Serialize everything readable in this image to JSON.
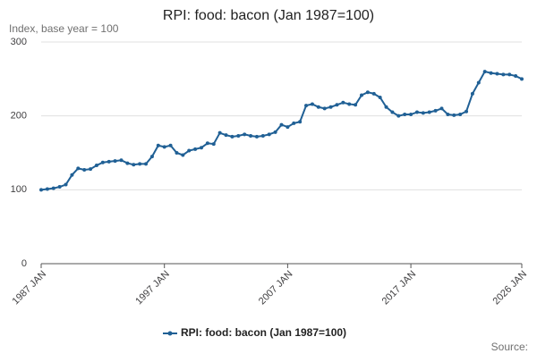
{
  "chart_data": {
    "type": "line",
    "title": "RPI: food: bacon (Jan 1987=100)",
    "y_label": "Index, base year = 100",
    "source": "Source:",
    "x": [
      "1987 JAN",
      "1987 JUL",
      "1988 JAN",
      "1988 JUL",
      "1989 JAN",
      "1989 JUL",
      "1990 JAN",
      "1990 JUL",
      "1991 JAN",
      "1991 JUL",
      "1992 JAN",
      "1992 JUL",
      "1993 JAN",
      "1993 JUL",
      "1994 JAN",
      "1994 JUL",
      "1995 JAN",
      "1995 JUL",
      "1996 JAN",
      "1996 JUL",
      "1997 JAN",
      "1997 JUL",
      "1998 JAN",
      "1998 JUL",
      "1999 JAN",
      "1999 JUL",
      "2000 JAN",
      "2000 JUL",
      "2001 JAN",
      "2001 JUL",
      "2002 JAN",
      "2002 JUL",
      "2003 JAN",
      "2003 JUL",
      "2004 JAN",
      "2004 JUL",
      "2005 JAN",
      "2005 JUL",
      "2006 JAN",
      "2006 JUL",
      "2007 JAN",
      "2007 JUL",
      "2008 JAN",
      "2008 JUL",
      "2009 JAN",
      "2009 JUL",
      "2010 JAN",
      "2010 JUL",
      "2011 JAN",
      "2011 JUL",
      "2012 JAN",
      "2012 JUL",
      "2013 JAN",
      "2013 JUL",
      "2014 JAN",
      "2014 JUL",
      "2015 JAN",
      "2015 JUL",
      "2016 JAN",
      "2016 JUL",
      "2017 JAN",
      "2017 JUL",
      "2018 JAN",
      "2018 JUL",
      "2019 JAN",
      "2019 JUL",
      "2020 JAN",
      "2020 JUL",
      "2021 JAN",
      "2021 JUL",
      "2022 JAN",
      "2022 JUL",
      "2023 JAN",
      "2023 JUL",
      "2024 JAN",
      "2024 JUL",
      "2025 JAN",
      "2025 JUL",
      "2026 JAN"
    ],
    "series": [
      {
        "name": "RPI: food: bacon (Jan 1987=100)",
        "color": "#206095",
        "values": [
          100,
          101,
          102,
          104,
          107,
          120,
          129,
          127,
          128,
          133,
          137,
          138,
          139,
          140,
          136,
          134,
          135,
          135,
          145,
          160,
          158,
          160,
          150,
          147,
          153,
          155,
          157,
          163,
          162,
          177,
          174,
          172,
          173,
          175,
          173,
          172,
          173,
          175,
          178,
          188,
          185,
          190,
          192,
          214,
          216,
          212,
          210,
          212,
          215,
          218,
          216,
          215,
          228,
          232,
          230,
          225,
          212,
          205,
          200,
          202,
          202,
          205,
          204,
          205,
          207,
          210,
          202,
          201,
          202,
          206,
          230,
          245,
          260,
          258,
          257,
          256,
          256,
          254,
          250
        ]
      }
    ],
    "ylim": [
      0,
      300
    ],
    "yticks": [
      0,
      100,
      200,
      300
    ],
    "xticks": [
      "1987 JAN",
      "1997 JAN",
      "2007 JAN",
      "2017 JAN",
      "2026 JAN"
    ],
    "grid": true
  }
}
